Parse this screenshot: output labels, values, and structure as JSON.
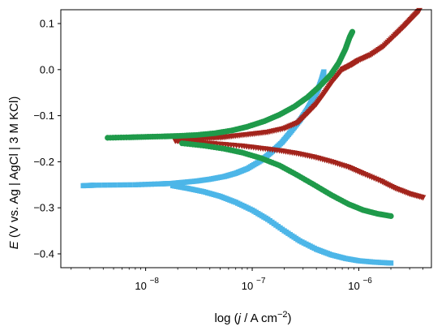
{
  "chart_data": {
    "type": "scatter",
    "xscale": "log",
    "xlim": [
      1.6e-09,
      4.8e-06
    ],
    "ylim": [
      -0.43,
      0.13
    ],
    "grid": false,
    "legend": "none",
    "x_ticks": [
      1e-08,
      1e-07,
      1e-06
    ],
    "x_tick_labels": [
      "10",
      "10",
      "10"
    ],
    "x_tick_exponents": [
      "−8",
      "−7",
      "−6"
    ],
    "y_ticks": [
      0.1,
      0.0,
      -0.1,
      -0.2,
      -0.3,
      -0.4
    ],
    "y_tick_labels": [
      "0.1",
      "0.0",
      "−0.1",
      "−0.2",
      "−0.3",
      "−0.4"
    ],
    "ylabel": {
      "italic": "E",
      "rest": " (V vs. Ag | AgCl | 3 M KCl)"
    },
    "xlabel": {
      "prefix": "log (",
      "italic": "j",
      "middle": " / A cm",
      "sup": "−2",
      "suffix": ")"
    },
    "series": [
      {
        "color": "#4db6e8",
        "marker": "square",
        "anodic": [
          [
            2.6e-09,
            -0.252
          ],
          [
            3.3e-09,
            -0.251
          ],
          [
            8e-09,
            -0.25
          ],
          [
            1.4e-08,
            -0.248
          ],
          [
            1.8e-08,
            -0.247
          ],
          [
            2.2e-08,
            -0.245
          ],
          [
            3e-08,
            -0.242
          ],
          [
            4e-08,
            -0.238
          ],
          [
            5.5e-08,
            -0.232
          ],
          [
            7e-08,
            -0.225
          ],
          [
            9e-08,
            -0.215
          ],
          [
            1.2e-07,
            -0.198
          ],
          [
            1.5e-07,
            -0.18
          ],
          [
            1.9e-07,
            -0.158
          ],
          [
            2.3e-07,
            -0.135
          ],
          [
            2.8e-07,
            -0.11
          ],
          [
            3.3e-07,
            -0.085
          ],
          [
            3.8e-07,
            -0.06
          ],
          [
            4.2e-07,
            -0.04
          ],
          [
            4.5e-07,
            -0.02
          ],
          [
            4.7e-07,
            -0.005
          ]
        ],
        "cathodic": [
          [
            1.8e-08,
            -0.252
          ],
          [
            2.5e-08,
            -0.258
          ],
          [
            3.5e-08,
            -0.265
          ],
          [
            5e-08,
            -0.275
          ],
          [
            7e-08,
            -0.288
          ],
          [
            1e-07,
            -0.305
          ],
          [
            1.4e-07,
            -0.325
          ],
          [
            2e-07,
            -0.35
          ],
          [
            2.8e-07,
            -0.372
          ],
          [
            4e-07,
            -0.39
          ],
          [
            5.5e-07,
            -0.402
          ],
          [
            7.5e-07,
            -0.41
          ],
          [
            1e-06,
            -0.415
          ],
          [
            1.4e-06,
            -0.418
          ],
          [
            2e-06,
            -0.42
          ]
        ]
      },
      {
        "color": "#a3241c",
        "marker": "triangle-down",
        "anodic": [
          [
            1.9e-08,
            -0.155
          ],
          [
            2.5e-08,
            -0.152
          ],
          [
            3.5e-08,
            -0.15
          ],
          [
            5e-08,
            -0.148
          ],
          [
            7e-08,
            -0.144
          ],
          [
            1e-07,
            -0.14
          ],
          [
            1.4e-07,
            -0.136
          ],
          [
            2e-07,
            -0.128
          ],
          [
            2.7e-07,
            -0.115
          ],
          [
            3.3e-07,
            -0.095
          ],
          [
            4e-07,
            -0.075
          ],
          [
            4.8e-07,
            -0.05
          ],
          [
            5.7e-07,
            -0.025
          ],
          [
            7e-07,
            0.0
          ],
          [
            8.5e-07,
            0.01
          ],
          [
            1e-06,
            0.02
          ],
          [
            1.3e-06,
            0.032
          ],
          [
            1.7e-06,
            0.05
          ],
          [
            2.2e-06,
            0.075
          ],
          [
            2.7e-06,
            0.095
          ],
          [
            3.2e-06,
            0.113
          ],
          [
            3.7e-06,
            0.128
          ]
        ],
        "cathodic": [
          [
            1.9e-08,
            -0.155
          ],
          [
            3e-08,
            -0.158
          ],
          [
            5e-08,
            -0.162
          ],
          [
            8e-08,
            -0.166
          ],
          [
            1.2e-07,
            -0.171
          ],
          [
            1.8e-07,
            -0.176
          ],
          [
            2.6e-07,
            -0.182
          ],
          [
            3.8e-07,
            -0.19
          ],
          [
            5.5e-07,
            -0.2
          ],
          [
            8e-07,
            -0.212
          ],
          [
            1.1e-06,
            -0.226
          ],
          [
            1.6e-06,
            -0.242
          ],
          [
            2.2e-06,
            -0.258
          ],
          [
            3e-06,
            -0.27
          ],
          [
            4e-06,
            -0.278
          ]
        ]
      },
      {
        "color": "#1f9a4a",
        "marker": "circle",
        "anodic": [
          [
            4.4e-09,
            -0.148
          ],
          [
            7e-09,
            -0.147
          ],
          [
            1e-08,
            -0.146
          ],
          [
            1.5e-08,
            -0.145
          ],
          [
            2e-08,
            -0.144
          ],
          [
            3e-08,
            -0.142
          ],
          [
            4.5e-08,
            -0.138
          ],
          [
            6.5e-08,
            -0.132
          ],
          [
            9e-08,
            -0.124
          ],
          [
            1.3e-07,
            -0.112
          ],
          [
            1.8e-07,
            -0.098
          ],
          [
            2.5e-07,
            -0.08
          ],
          [
            3.3e-07,
            -0.06
          ],
          [
            4.3e-07,
            -0.036
          ],
          [
            5.5e-07,
            -0.01
          ],
          [
            6.5e-07,
            0.015
          ],
          [
            7.5e-07,
            0.045
          ],
          [
            8.2e-07,
            0.07
          ],
          [
            8.7e-07,
            0.082
          ]
        ],
        "cathodic": [
          [
            2.2e-08,
            -0.16
          ],
          [
            3.5e-08,
            -0.165
          ],
          [
            5.5e-08,
            -0.172
          ],
          [
            8e-08,
            -0.18
          ],
          [
            1.2e-07,
            -0.192
          ],
          [
            1.8e-07,
            -0.208
          ],
          [
            2.6e-07,
            -0.228
          ],
          [
            3.8e-07,
            -0.25
          ],
          [
            5.5e-07,
            -0.272
          ],
          [
            8e-07,
            -0.292
          ],
          [
            1.1e-06,
            -0.305
          ],
          [
            1.5e-06,
            -0.313
          ],
          [
            2e-06,
            -0.318
          ]
        ]
      }
    ]
  }
}
